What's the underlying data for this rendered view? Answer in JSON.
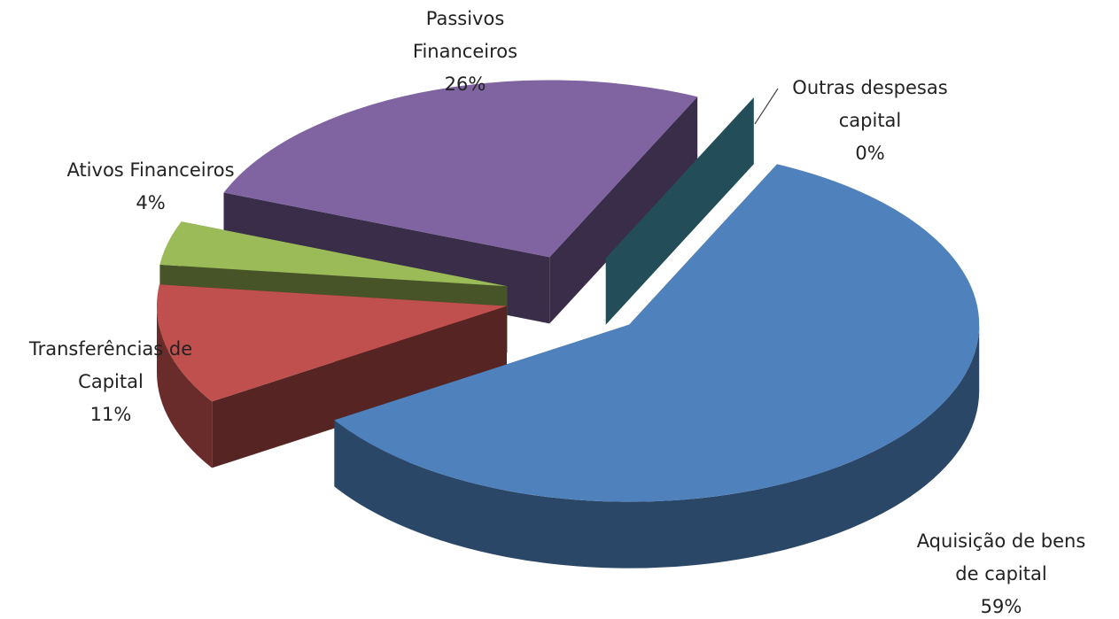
{
  "chart_data": {
    "type": "pie3d",
    "categories": [
      "Aquisição de bens de capital",
      "Transferências de Capital",
      "Ativos Financeiros",
      "Passivos Financeiros",
      "Outras despesas capital"
    ],
    "values": [
      59,
      11,
      4,
      26,
      0
    ],
    "value_labels": [
      "59%",
      "11%",
      "4%",
      "26%",
      "0%"
    ],
    "colors": [
      "#4f81bd",
      "#c0504d",
      "#9bbb59",
      "#8064a2",
      "#4bacc6"
    ]
  }
}
